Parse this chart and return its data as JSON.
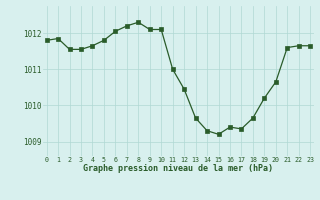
{
  "x": [
    0,
    1,
    2,
    3,
    4,
    5,
    6,
    7,
    8,
    9,
    10,
    11,
    12,
    13,
    14,
    15,
    16,
    17,
    18,
    19,
    20,
    21,
    22,
    23
  ],
  "y": [
    1011.8,
    1011.85,
    1011.55,
    1011.55,
    1011.65,
    1011.8,
    1012.05,
    1012.2,
    1012.3,
    1012.1,
    1012.1,
    1011.0,
    1010.45,
    1009.65,
    1009.3,
    1009.2,
    1009.4,
    1009.35,
    1009.65,
    1010.2,
    1010.65,
    1011.6,
    1011.65,
    1011.65
  ],
  "line_color": "#2a5c2a",
  "marker_color": "#2a5c2a",
  "bg_color": "#d8f0ee",
  "grid_color": "#b0d8d4",
  "xlabel": "Graphe pression niveau de la mer (hPa)",
  "xlabel_color": "#2a5c2a",
  "tick_color": "#2a5c2a",
  "ylim": [
    1008.6,
    1012.75
  ],
  "yticks": [
    1009,
    1010,
    1011,
    1012
  ],
  "ytick_labels": [
    "1009",
    "1010",
    "1011",
    "1012"
  ],
  "xticks": [
    0,
    1,
    2,
    3,
    4,
    5,
    6,
    7,
    8,
    9,
    10,
    11,
    12,
    13,
    14,
    15,
    16,
    17,
    18,
    19,
    20,
    21,
    22,
    23
  ],
  "xlim": [
    -0.3,
    23.3
  ]
}
